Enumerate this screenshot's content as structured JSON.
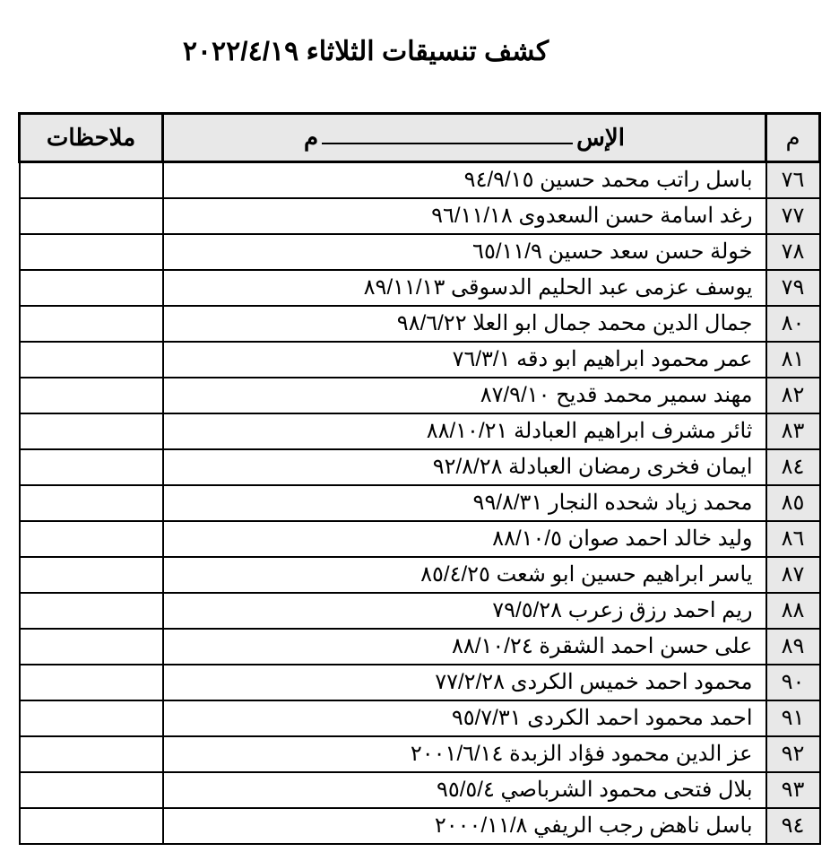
{
  "title": "كشف تنسيقات الثلاثاء ٢٠٢٢/٤/١٩",
  "headers": {
    "index": "م",
    "name_prefix": "الإس",
    "name_suffix": "م",
    "notes": "ملاحظات"
  },
  "table": {
    "background_color": "#ffffff",
    "header_bg": "#e8e8e8",
    "index_bg": "#e8e8e8",
    "border_color": "#000000",
    "text_color": "#000000",
    "title_fontsize": 30,
    "header_fontsize": 26,
    "cell_fontsize": 24,
    "col_widths": {
      "index": 60,
      "notes": 160
    }
  },
  "rows": [
    {
      "idx": "٧٦",
      "name": "باسل راتب محمد حسين ٩٤/٩/١٥",
      "notes": ""
    },
    {
      "idx": "٧٧",
      "name": "رغد اسامة حسن السعدوى ٩٦/١١/١٨",
      "notes": ""
    },
    {
      "idx": "٧٨",
      "name": "خولة حسن سعد حسين ٦٥/١١/٩",
      "notes": ""
    },
    {
      "idx": "٧٩",
      "name": "يوسف عزمى عبد الحليم الدسوقى ٨٩/١١/١٣",
      "notes": ""
    },
    {
      "idx": "٨٠",
      "name": "جمال الدين محمد جمال ابو العلا ٩٨/٦/٢٢",
      "notes": ""
    },
    {
      "idx": "٨١",
      "name": "عمر محمود ابراهيم ابو دقه ٧٦/٣/١",
      "notes": ""
    },
    {
      "idx": "٨٢",
      "name": "مهند سمير محمد قديح ٨٧/٩/١٠",
      "notes": ""
    },
    {
      "idx": "٨٣",
      "name": "ثائر مشرف ابراهيم العبادلة ٨٨/١٠/٢١",
      "notes": ""
    },
    {
      "idx": "٨٤",
      "name": "ايمان فخرى رمضان العبادلة ٩٢/٨/٢٨",
      "notes": ""
    },
    {
      "idx": "٨٥",
      "name": "محمد زياد شحده النجار ٩٩/٨/٣١",
      "notes": ""
    },
    {
      "idx": "٨٦",
      "name": "وليد خالد احمد صوان ٨٨/١٠/٥",
      "notes": ""
    },
    {
      "idx": "٨٧",
      "name": "ياسر ابراهيم حسين ابو شعت ٨٥/٤/٢٥",
      "notes": ""
    },
    {
      "idx": "٨٨",
      "name": "ريم احمد رزق زعرب ٧٩/٥/٢٨",
      "notes": ""
    },
    {
      "idx": "٨٩",
      "name": "على حسن احمد الشقرة ٨٨/١٠/٢٤",
      "notes": ""
    },
    {
      "idx": "٩٠",
      "name": "محمود احمد خميس الكردى ٧٧/٢/٢٨",
      "notes": ""
    },
    {
      "idx": "٩١",
      "name": "احمد محمود احمد الكردى ٩٥/٧/٣١",
      "notes": ""
    },
    {
      "idx": "٩٢",
      "name": "عز الدين محمود فؤاد الزبدة ٢٠٠١/٦/١٤",
      "notes": ""
    },
    {
      "idx": "٩٣",
      "name": "بلال فتحى محمود الشرباصي ٩٥/٥/٤",
      "notes": ""
    },
    {
      "idx": "٩٤",
      "name": "باسل ناهض رجب الريفي ٢٠٠٠/١١/٨",
      "notes": ""
    }
  ]
}
